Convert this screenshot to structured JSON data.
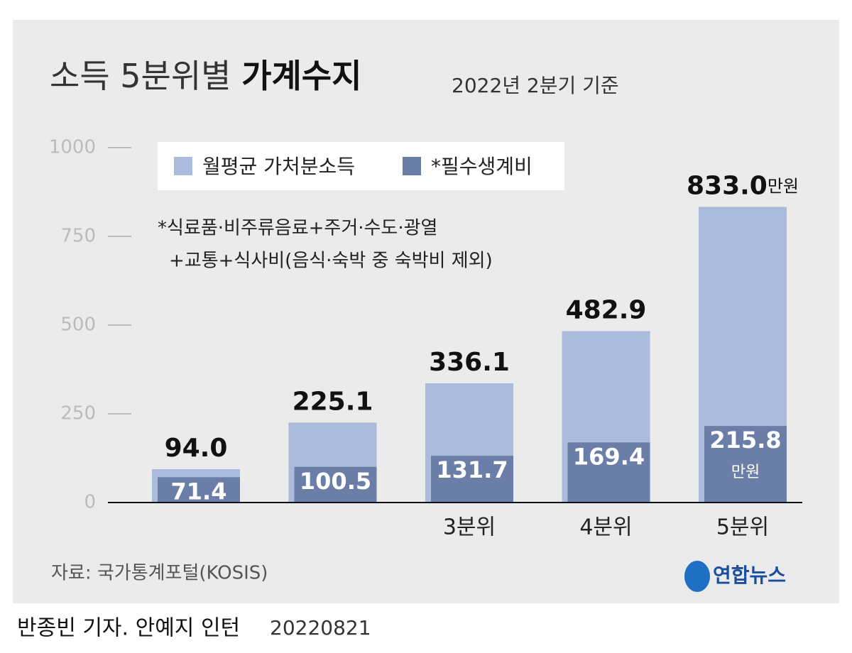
{
  "chart_data": {
    "type": "bar",
    "title": "소득 5분위별",
    "title_bold": "가계수지",
    "subtitle": "2022년 2분기 기준",
    "categories": [
      null,
      null,
      "3분위",
      "4분위",
      "5분위"
    ],
    "series": [
      {
        "name": "월평균 가처분소득",
        "color": "#aabbdb",
        "values": [
          94.0,
          225.1,
          336.1,
          482.9,
          833.0
        ],
        "value_labels": [
          "94.0",
          "225.1",
          "336.1",
          "482.9",
          "833.0"
        ]
      },
      {
        "name": "*필수생계비",
        "color": "#6a7ea8",
        "values": [
          71.4,
          100.5,
          131.7,
          169.4,
          215.8
        ]
      }
    ],
    "unit": "만원",
    "note": [
      "*식료품·비주류음료+주거·수도·광열",
      "+교통+식사비(음식·숙박 중 숙박비 제외)"
    ],
    "ylim": [
      0,
      1000
    ],
    "yticks": [
      0,
      250,
      500,
      750,
      1000
    ],
    "source": "자료: 국가통계포털(KOSIS)",
    "logo": "연합뉴스",
    "byline": "반종빈 기자. 안예지 인턴",
    "date": "20220821"
  }
}
